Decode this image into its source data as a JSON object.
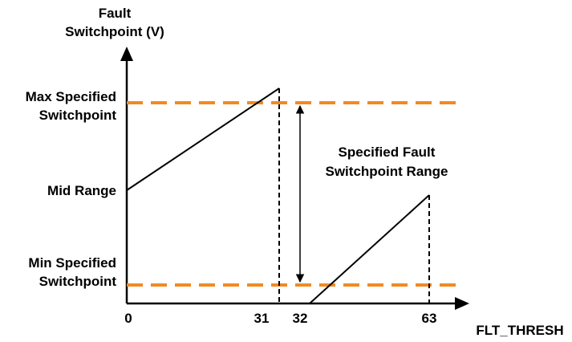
{
  "axes": {
    "y_title_line1": "Fault",
    "y_title_line2": "Switchpoint (V)",
    "x_title": "FLT_THRESH"
  },
  "y_labels": {
    "max_line1": "Max Specified",
    "max_line2": "Switchpoint",
    "mid": "Mid Range",
    "min_line1": "Min Specified",
    "min_line2": "Switchpoint"
  },
  "x_ticks": [
    "0",
    "31",
    "32",
    "63"
  ],
  "annotation": {
    "line1": "Specified Fault",
    "line2": "Switchpoint Range"
  },
  "colors": {
    "limit_dash": "#F08A24",
    "line": "#000000"
  }
}
